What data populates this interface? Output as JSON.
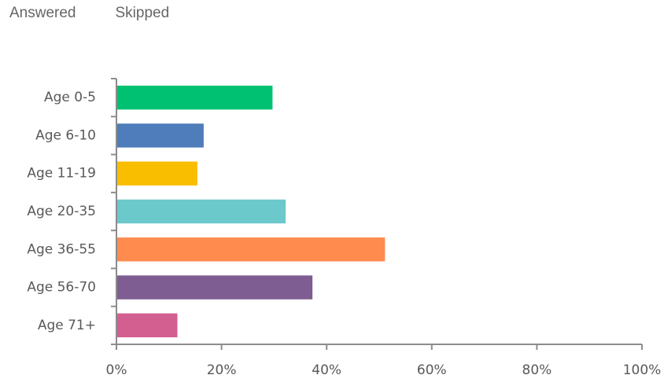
{
  "tabs": [
    {
      "label": "Answered"
    },
    {
      "label": "Skipped"
    }
  ],
  "chart_data": {
    "type": "bar",
    "orientation": "horizontal",
    "categories": [
      "Age 0-5",
      "Age 6-10",
      "Age 11-19",
      "Age 20-35",
      "Age 36-55",
      "Age 56-70",
      "Age 71+"
    ],
    "values": [
      29.7,
      16.6,
      15.4,
      32.2,
      51.1,
      37.3,
      11.6
    ],
    "colors": [
      "#00c171",
      "#4f7cba",
      "#f9be00",
      "#6bc8cb",
      "#ff8b4f",
      "#7e5d92",
      "#d25f90"
    ],
    "xlim": [
      0,
      100
    ],
    "xticks": [
      "0%",
      "20%",
      "40%",
      "60%",
      "80%",
      "100%"
    ],
    "grid": false,
    "title": "",
    "xlabel": "",
    "ylabel": ""
  }
}
